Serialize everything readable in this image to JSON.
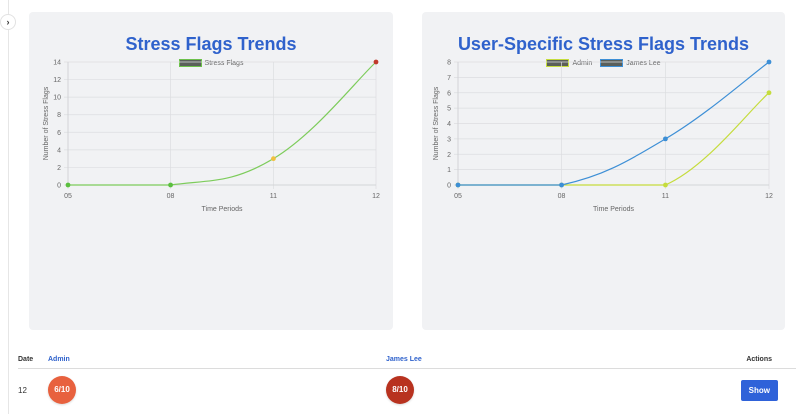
{
  "sidebar": {
    "toggle_icon": "›"
  },
  "charts": {
    "left": {
      "title": "Stress Flags Trends",
      "legend": [
        {
          "label": "Stress Flags",
          "border": "#6cc04a"
        }
      ]
    },
    "right": {
      "title": "User-Specific Stress Flags Trends",
      "legend": [
        {
          "label": "Admin",
          "border": "#c5dc3c"
        },
        {
          "label": "James Lee",
          "border": "#3d8fd6"
        }
      ]
    }
  },
  "chart_data": [
    {
      "type": "line",
      "title": "Stress Flags Trends",
      "categories": [
        "05",
        "08",
        "11",
        "12"
      ],
      "series": [
        {
          "name": "Stress Flags",
          "values": [
            0,
            0,
            3,
            14
          ],
          "color": "#7dcc5b",
          "point_colors": [
            "#5bbf3f",
            "#5bbf3f",
            "#f0c040",
            "#c0392b"
          ]
        }
      ],
      "xlabel": "Time Periods",
      "ylabel": "Number of Stress Flags",
      "ylim": [
        0,
        14
      ],
      "yticks": [
        0,
        2,
        4,
        6,
        8,
        10,
        12,
        14
      ],
      "grid": true,
      "legend_position": "top"
    },
    {
      "type": "line",
      "title": "User-Specific Stress Flags Trends",
      "categories": [
        "05",
        "08",
        "11",
        "12"
      ],
      "series": [
        {
          "name": "Admin",
          "values": [
            0,
            0,
            0,
            6
          ],
          "color": "#c5dc3c"
        },
        {
          "name": "James Lee",
          "values": [
            0,
            0,
            3,
            8
          ],
          "color": "#3d8fd6"
        }
      ],
      "xlabel": "Time Periods",
      "ylabel": "Number of Stress Flags",
      "ylim": [
        0,
        8
      ],
      "yticks": [
        0,
        1,
        2,
        3,
        4,
        5,
        6,
        7,
        8
      ],
      "grid": true,
      "legend_position": "top"
    }
  ],
  "table": {
    "headers": {
      "date": "Date",
      "admin": "Admin",
      "james": "James Lee",
      "actions": "Actions"
    },
    "rows": [
      {
        "date": "12",
        "admin": "6/10",
        "admin_color": "#e8613e",
        "james": "8/10",
        "james_color": "#b8321f",
        "action": "Show"
      }
    ]
  }
}
